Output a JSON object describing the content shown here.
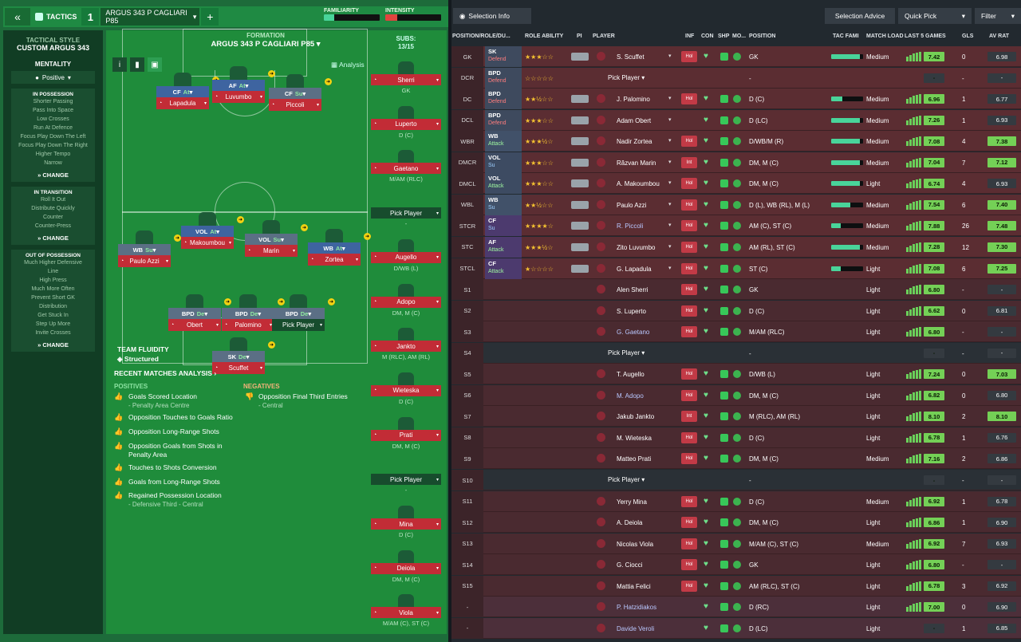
{
  "topbar": {
    "tactics": "TACTICS",
    "slot": "1",
    "tactic_name": "ARGUS 343 P CAGLIARI P85",
    "familiarity": "FAMILIARITY",
    "intensity": "INTENSITY",
    "familiarity_level": 0.18,
    "intensity_level": 0.22
  },
  "sidebar": {
    "style_hd": "TACTICAL STYLE",
    "style_name": "CUSTOM ARGUS 343",
    "mentality_hd": "MENTALITY",
    "mentality": "Positive",
    "in_poss": {
      "title": "IN POSSESSION",
      "items": [
        "Shorter Passing",
        "Pass Into Space",
        "Low Crosses",
        "Run At Defence",
        "Focus Play Down The Left",
        "Focus Play Down The Right",
        "Higher Tempo",
        "Narrow"
      ],
      "change": "CHANGE"
    },
    "in_trans": {
      "title": "IN TRANSITION",
      "items": [
        "Roll It Out",
        "Distribute Quickly",
        "Counter",
        "Counter-Press"
      ],
      "change": "CHANGE"
    },
    "out_poss": {
      "title": "OUT OF POSSESSION",
      "items": [
        "Much Higher Defensive",
        "Line",
        "High Press",
        "Much More Often",
        "Prevent Short GK",
        "Distribution",
        "Get Stuck In",
        "Step Up More",
        "Invite Crosses"
      ],
      "change": "CHANGE"
    }
  },
  "pitch": {
    "formation_hd": "FORMATION",
    "formation_name": "ARGUS 343 P CAGLIARI P85",
    "subs_hd": "SUBS:",
    "subs_count": "13/15",
    "analysis": "Analysis",
    "fluidity_hd": "TEAM FLUIDITY",
    "fluidity": "Structured",
    "players": [
      {
        "role": "CF",
        "duty": "At",
        "name": "Lapadula"
      },
      {
        "role": "AF",
        "duty": "At",
        "name": "Luvumbo"
      },
      {
        "role": "CF",
        "duty": "Su",
        "name": "Piccoli"
      },
      {
        "role": "VOL",
        "duty": "At",
        "name": "Makoumbou"
      },
      {
        "role": "VOL",
        "duty": "Su",
        "name": "Marin"
      },
      {
        "role": "WB",
        "duty": "Su",
        "name": "Paulo Azzi"
      },
      {
        "role": "WB",
        "duty": "At",
        "name": "Zortea"
      },
      {
        "role": "BPD",
        "duty": "De",
        "name": "Obert"
      },
      {
        "role": "BPD",
        "duty": "De",
        "name": "Palomino"
      },
      {
        "role": "BPD",
        "duty": "De",
        "name": "Pick Player"
      },
      {
        "role": "SK",
        "duty": "De",
        "name": "Scuffet"
      }
    ],
    "subs": [
      {
        "name": "Sherri",
        "pos": "GK"
      },
      {
        "name": "Luperto",
        "pos": "D (C)"
      },
      {
        "name": "Gaetano",
        "pos": "M/AM (RLC)"
      },
      {
        "name": "Pick Player",
        "pos": "-"
      },
      {
        "name": "Augello",
        "pos": "D/WB (L)"
      },
      {
        "name": "Adopo",
        "pos": "DM, M (C)"
      },
      {
        "name": "Jankto",
        "pos": "M (RLC), AM (RL)"
      },
      {
        "name": "Wieteska",
        "pos": "D (C)"
      },
      {
        "name": "Prati",
        "pos": "DM, M (C)"
      },
      {
        "name": "Pick Player",
        "pos": "-"
      },
      {
        "name": "Mina",
        "pos": "D (C)"
      },
      {
        "name": "Deiola",
        "pos": "DM, M (C)"
      },
      {
        "name": "Viola",
        "pos": "M/AM (C), ST (C)"
      }
    ]
  },
  "recent": {
    "title": "RECENT MATCHES ANALYSIS",
    "positives": "POSITIVES",
    "negatives": "NEGATIVES",
    "pos_items": [
      [
        "Goals Scored Location",
        "- Penalty Area Centre"
      ],
      [
        "Opposition Touches to Goals Ratio",
        ""
      ],
      [
        "Opposition Long-Range Shots",
        ""
      ],
      [
        "Opposition Goals from Shots in",
        "Penalty Area"
      ],
      [
        "Touches to Shots Conversion",
        ""
      ],
      [
        "Goals from Long-Range Shots",
        ""
      ],
      [
        "Regained Possession Location",
        "- Defensive Third - Central"
      ]
    ],
    "neg_items": [
      [
        "Opposition Final Third Entries",
        "- Central"
      ]
    ]
  },
  "right": {
    "selection_info": "Selection Info",
    "selection_advice": "Selection Advice",
    "quick_pick": "Quick Pick",
    "filter": "Filter",
    "cols": [
      "POSITION/ROLE/DU...",
      "ROLE ABILITY",
      "PI",
      "PLAYER",
      "INF",
      "CON",
      "SHP",
      "MO...",
      "POSITION",
      "TAC FAMI",
      "MATCH LOAD",
      "LAST 5 GAMES",
      "GLS",
      "AV RAT"
    ],
    "rows": [
      {
        "pos": "GK",
        "role": "SK",
        "duty": "Defend",
        "stars": "★★★☆☆",
        "name": "S. Scuffet",
        "inf": "Hol",
        "posn": "GK",
        "tac": 0.9,
        "load": "Medium",
        "form": "7.42",
        "gls": "0",
        "av": "6.98",
        "t": "def"
      },
      {
        "pos": "DCR",
        "role": "BPD",
        "duty": "Defend",
        "stars": "☆☆☆☆☆",
        "name": "Pick Player",
        "pick": true,
        "inf": "",
        "posn": "-",
        "tac": 0,
        "load": "",
        "form": "-",
        "gls": "-",
        "av": "-",
        "t": "def"
      },
      {
        "pos": "DC",
        "role": "BPD",
        "duty": "Defend",
        "stars": "★★½☆☆",
        "name": "J. Palomino",
        "inf": "Hol",
        "posn": "D (C)",
        "tac": 0.35,
        "load": "Medium",
        "form": "6.96",
        "gls": "1",
        "av": "6.77",
        "t": "def"
      },
      {
        "pos": "DCL",
        "role": "BPD",
        "duty": "Defend",
        "stars": "★★★☆☆",
        "name": "Adam Obert",
        "inf": "",
        "posn": "D (LC)",
        "tac": 0.9,
        "load": "Medium",
        "form": "7.26",
        "gls": "1",
        "av": "6.93",
        "t": "def"
      },
      {
        "pos": "WBR",
        "role": "WB",
        "duty": "Attack",
        "stars": "★★★½☆",
        "name": "Nadir Zortea",
        "inf": "Hol",
        "posn": "D/WB/M (R)",
        "tac": 0.9,
        "load": "Medium",
        "form": "7.08",
        "gls": "4",
        "av": "7.38",
        "t": "wb"
      },
      {
        "pos": "DMCR",
        "role": "VOL",
        "duty": "Su",
        "stars": "★★★☆☆",
        "name": "Răzvan Marin",
        "inf": "Int",
        "posn": "DM, M (C)",
        "tac": 0.9,
        "load": "Medium",
        "form": "7.04",
        "gls": "7",
        "av": "7.12",
        "t": "mid"
      },
      {
        "pos": "DMCL",
        "role": "VOL",
        "duty": "Attack",
        "stars": "★★★☆☆",
        "name": "A. Makoumbou",
        "inf": "Hol",
        "posn": "DM, M (C)",
        "tac": 0.9,
        "load": "Light",
        "form": "6.74",
        "gls": "4",
        "av": "6.93",
        "t": "mid"
      },
      {
        "pos": "WBL",
        "role": "WB",
        "duty": "Su",
        "stars": "★★½☆☆",
        "name": "Paulo Azzi",
        "inf": "Hol",
        "posn": "D (L), WB (RL), M (L)",
        "tac": 0.6,
        "load": "Medium",
        "form": "7.54",
        "gls": "6",
        "av": "7.40",
        "t": "wb"
      },
      {
        "pos": "STCR",
        "role": "CF",
        "duty": "Su",
        "stars": "★★★★☆",
        "name": "R. Piccoli",
        "link": true,
        "inf": "Hol",
        "posn": "AM (C), ST (C)",
        "tac": 0.3,
        "load": "Medium",
        "form": "7.88",
        "gls": "26",
        "av": "7.48",
        "t": "st"
      },
      {
        "pos": "STC",
        "role": "AF",
        "duty": "Attack",
        "stars": "★★★½☆",
        "name": "Zito Luvumbo",
        "inf": "Hol",
        "posn": "AM (RL), ST (C)",
        "tac": 0.9,
        "load": "Medium",
        "form": "7.28",
        "gls": "12",
        "av": "7.30",
        "t": "st"
      },
      {
        "pos": "STCL",
        "role": "CF",
        "duty": "Attack",
        "stars": "★☆☆☆☆",
        "name": "G. Lapadula",
        "inf": "Hol",
        "posn": "ST (C)",
        "tac": 0.3,
        "load": "Light",
        "form": "7.08",
        "gls": "6",
        "av": "7.25",
        "t": "st"
      },
      {
        "pos": "S1",
        "role": "",
        "duty": "",
        "stars": "",
        "name": "Alen Sherri",
        "inf": "Hol",
        "posn": "GK",
        "tac": 0,
        "load": "Light",
        "form": "6.80",
        "gls": "-",
        "av": "-",
        "t": "sub"
      },
      {
        "pos": "S2",
        "role": "",
        "duty": "",
        "stars": "",
        "name": "S. Luperto",
        "inf": "Hol",
        "posn": "D (C)",
        "tac": 0,
        "load": "Light",
        "form": "6.62",
        "gls": "0",
        "av": "6.81",
        "t": "sub"
      },
      {
        "pos": "S3",
        "role": "",
        "duty": "",
        "stars": "",
        "name": "G. Gaetano",
        "link": true,
        "inf": "Hol",
        "posn": "M/AM (RLC)",
        "tac": 0,
        "load": "Light",
        "form": "6.80",
        "gls": "-",
        "av": "-",
        "t": "sub"
      },
      {
        "pos": "S4",
        "role": "",
        "duty": "",
        "stars": "",
        "name": "Pick Player",
        "pick": true,
        "inf": "",
        "posn": "-",
        "tac": 0,
        "load": "",
        "form": "-",
        "gls": "-",
        "av": "-",
        "t": "empty"
      },
      {
        "pos": "S5",
        "role": "",
        "duty": "",
        "stars": "",
        "name": "T. Augello",
        "inf": "Hol",
        "posn": "D/WB (L)",
        "tac": 0,
        "load": "Light",
        "form": "7.24",
        "gls": "0",
        "av": "7.03",
        "t": "sub"
      },
      {
        "pos": "S6",
        "role": "",
        "duty": "",
        "stars": "",
        "name": "M. Adopo",
        "link": true,
        "inf": "Hol",
        "posn": "DM, M (C)",
        "tac": 0,
        "load": "Light",
        "form": "6.82",
        "gls": "0",
        "av": "6.80",
        "t": "sub"
      },
      {
        "pos": "S7",
        "role": "",
        "duty": "",
        "stars": "",
        "name": "Jakub Jankto",
        "inf": "Int",
        "posn": "M (RLC), AM (RL)",
        "tac": 0,
        "load": "Light",
        "form": "8.10",
        "gls": "2",
        "av": "8.10",
        "t": "sub"
      },
      {
        "pos": "S8",
        "role": "",
        "duty": "",
        "stars": "",
        "name": "M. Wieteska",
        "inf": "Hol",
        "posn": "D (C)",
        "tac": 0,
        "load": "Light",
        "form": "6.78",
        "gls": "1",
        "av": "6.76",
        "t": "sub"
      },
      {
        "pos": "S9",
        "role": "",
        "duty": "",
        "stars": "",
        "name": "Matteo Prati",
        "inf": "Hol",
        "posn": "DM, M (C)",
        "tac": 0,
        "load": "Medium",
        "form": "7.16",
        "gls": "2",
        "av": "6.86",
        "t": "sub"
      },
      {
        "pos": "S10",
        "role": "",
        "duty": "",
        "stars": "",
        "name": "Pick Player",
        "pick": true,
        "inf": "",
        "posn": "-",
        "tac": 0,
        "load": "",
        "form": "-",
        "gls": "-",
        "av": "-",
        "t": "empty"
      },
      {
        "pos": "S11",
        "role": "",
        "duty": "",
        "stars": "",
        "name": "Yerry Mina",
        "inf": "Hol",
        "posn": "D (C)",
        "tac": 0,
        "load": "Medium",
        "form": "6.92",
        "gls": "1",
        "av": "6.78",
        "t": "sub"
      },
      {
        "pos": "S12",
        "role": "",
        "duty": "",
        "stars": "",
        "name": "A. Deiola",
        "inf": "Hol",
        "posn": "DM, M (C)",
        "tac": 0,
        "load": "Light",
        "form": "6.86",
        "gls": "1",
        "av": "6.90",
        "t": "sub"
      },
      {
        "pos": "S13",
        "role": "",
        "duty": "",
        "stars": "",
        "name": "Nicolas Viola",
        "inf": "Hol",
        "posn": "M/AM (C), ST (C)",
        "tac": 0,
        "load": "Medium",
        "form": "6.92",
        "gls": "7",
        "av": "6.93",
        "t": "sub"
      },
      {
        "pos": "S14",
        "role": "",
        "duty": "",
        "stars": "",
        "name": "G. Ciocci",
        "inf": "Hol",
        "posn": "GK",
        "tac": 0,
        "load": "Light",
        "form": "6.80",
        "gls": "-",
        "av": "-",
        "t": "sub"
      },
      {
        "pos": "S15",
        "role": "",
        "duty": "",
        "stars": "",
        "name": "Mattia Felici",
        "inf": "Hol",
        "posn": "AM (RLC), ST (C)",
        "tac": 0,
        "load": "Light",
        "form": "6.78",
        "gls": "3",
        "av": "6.92",
        "t": "sub"
      },
      {
        "pos": "-",
        "role": "",
        "duty": "",
        "stars": "",
        "name": "P. Hatzidiakos",
        "link": true,
        "inf": "",
        "posn": "D (RC)",
        "tac": 0,
        "load": "Light",
        "form": "7.00",
        "gls": "0",
        "av": "6.90",
        "t": "res"
      },
      {
        "pos": "-",
        "role": "",
        "duty": "",
        "stars": "",
        "name": "Davide Veroli",
        "link": true,
        "inf": "",
        "posn": "D (LC)",
        "tac": 0,
        "load": "Light",
        "form": "-",
        "gls": "1",
        "av": "6.85",
        "t": "res"
      }
    ]
  }
}
